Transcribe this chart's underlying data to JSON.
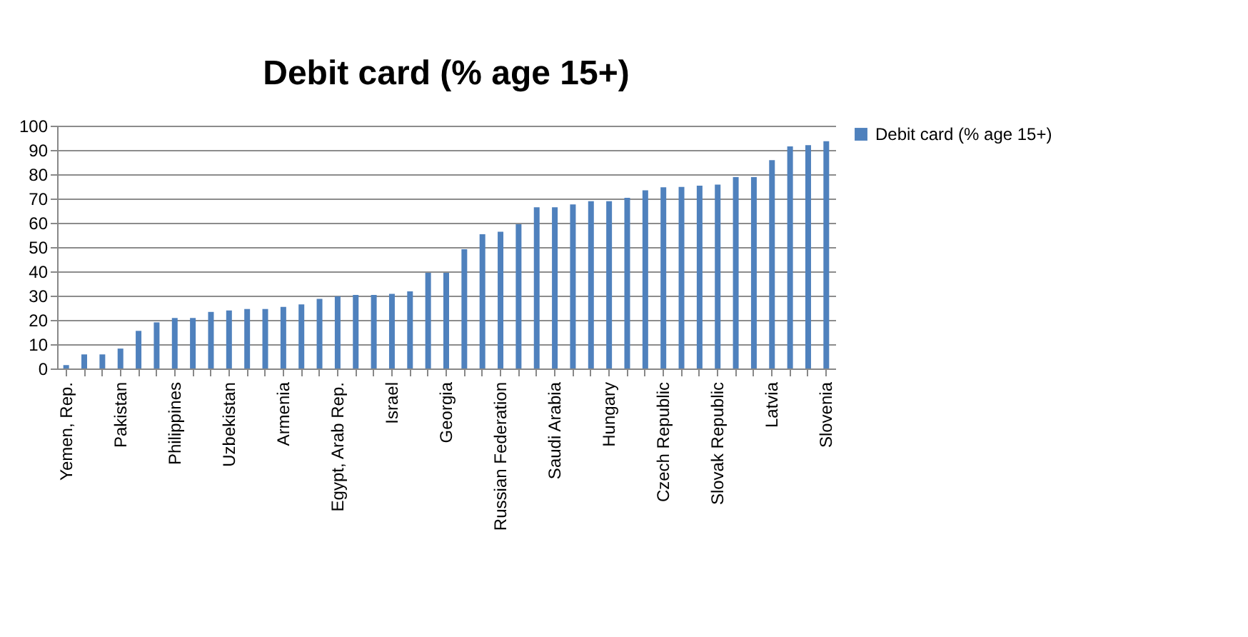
{
  "chart_data": {
    "type": "bar",
    "title": "Debit card (% age 15+)",
    "categories": [
      "Yemen, Rep.",
      null,
      null,
      "Pakistan",
      null,
      null,
      "Philippines",
      null,
      null,
      "Uzbekistan",
      null,
      null,
      "Armenia",
      null,
      null,
      "Egypt, Arab Rep.",
      null,
      null,
      "Israel",
      null,
      null,
      "Georgia",
      null,
      null,
      "Russian Federation",
      null,
      null,
      "Saudi Arabia",
      null,
      null,
      "Hungary",
      null,
      null,
      "Czech Republic",
      null,
      null,
      "Slovak Republic",
      null,
      null,
      "Latvia",
      null,
      null,
      "Slovenia"
    ],
    "series": [
      {
        "name": "Debit card (% age 15+)",
        "color": "#4f81bd",
        "values": [
          1.4,
          5.8,
          5.8,
          8.2,
          15.5,
          19,
          20.8,
          20.8,
          23.3,
          23.9,
          24.5,
          24.5,
          25.4,
          26.4,
          28.7,
          29.7,
          30.3,
          30.3,
          30.7,
          31.8,
          39.4,
          39.4,
          49.1,
          55.3,
          56.3,
          59.4,
          66.4,
          66.4,
          67.6,
          68.9,
          68.9,
          70.3,
          73.4,
          74.6,
          74.8,
          75.3,
          75.7,
          78.8,
          78.8,
          85.8,
          91.5,
          92.0,
          93.6
        ]
      }
    ],
    "ylim": [
      0,
      100
    ],
    "yticks": [
      0,
      10,
      20,
      30,
      40,
      50,
      60,
      70,
      80,
      90,
      100
    ],
    "grid": "y",
    "legend": "right"
  }
}
